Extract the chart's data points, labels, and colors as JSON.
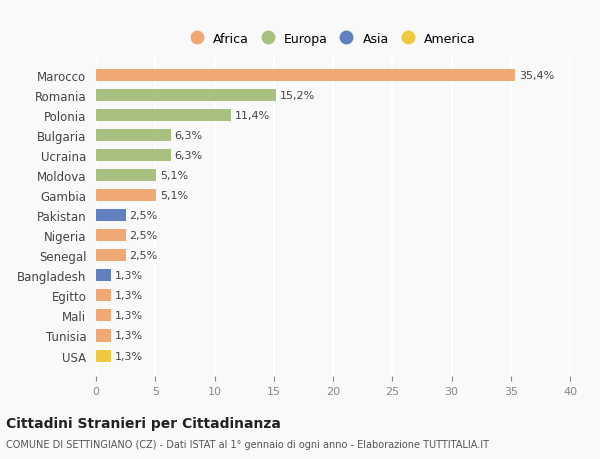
{
  "countries": [
    "Marocco",
    "Romania",
    "Polonia",
    "Bulgaria",
    "Ucraina",
    "Moldova",
    "Gambia",
    "Pakistan",
    "Nigeria",
    "Senegal",
    "Bangladesh",
    "Egitto",
    "Mali",
    "Tunisia",
    "USA"
  ],
  "values": [
    35.4,
    15.2,
    11.4,
    6.3,
    6.3,
    5.1,
    5.1,
    2.5,
    2.5,
    2.5,
    1.3,
    1.3,
    1.3,
    1.3,
    1.3
  ],
  "labels": [
    "35,4%",
    "15,2%",
    "11,4%",
    "6,3%",
    "6,3%",
    "5,1%",
    "5,1%",
    "2,5%",
    "2,5%",
    "2,5%",
    "1,3%",
    "1,3%",
    "1,3%",
    "1,3%",
    "1,3%"
  ],
  "continents": [
    "Africa",
    "Europa",
    "Europa",
    "Europa",
    "Europa",
    "Europa",
    "Africa",
    "Asia",
    "Africa",
    "Africa",
    "Asia",
    "Africa",
    "Africa",
    "Africa",
    "America"
  ],
  "continent_colors": {
    "Africa": "#F0A875",
    "Europa": "#A8C080",
    "Asia": "#6080C0",
    "America": "#F0C840"
  },
  "legend_order": [
    "Africa",
    "Europa",
    "Asia",
    "America"
  ],
  "title": "Cittadini Stranieri per Cittadinanza",
  "subtitle": "COMUNE DI SETTINGIANO (CZ) - Dati ISTAT al 1° gennaio di ogni anno - Elaborazione TUTTITALIA.IT",
  "xlim": [
    0,
    40
  ],
  "xticks": [
    0,
    5,
    10,
    15,
    20,
    25,
    30,
    35,
    40
  ],
  "background_color": "#f9f9f9",
  "grid_color": "#ffffff",
  "bar_height": 0.6
}
